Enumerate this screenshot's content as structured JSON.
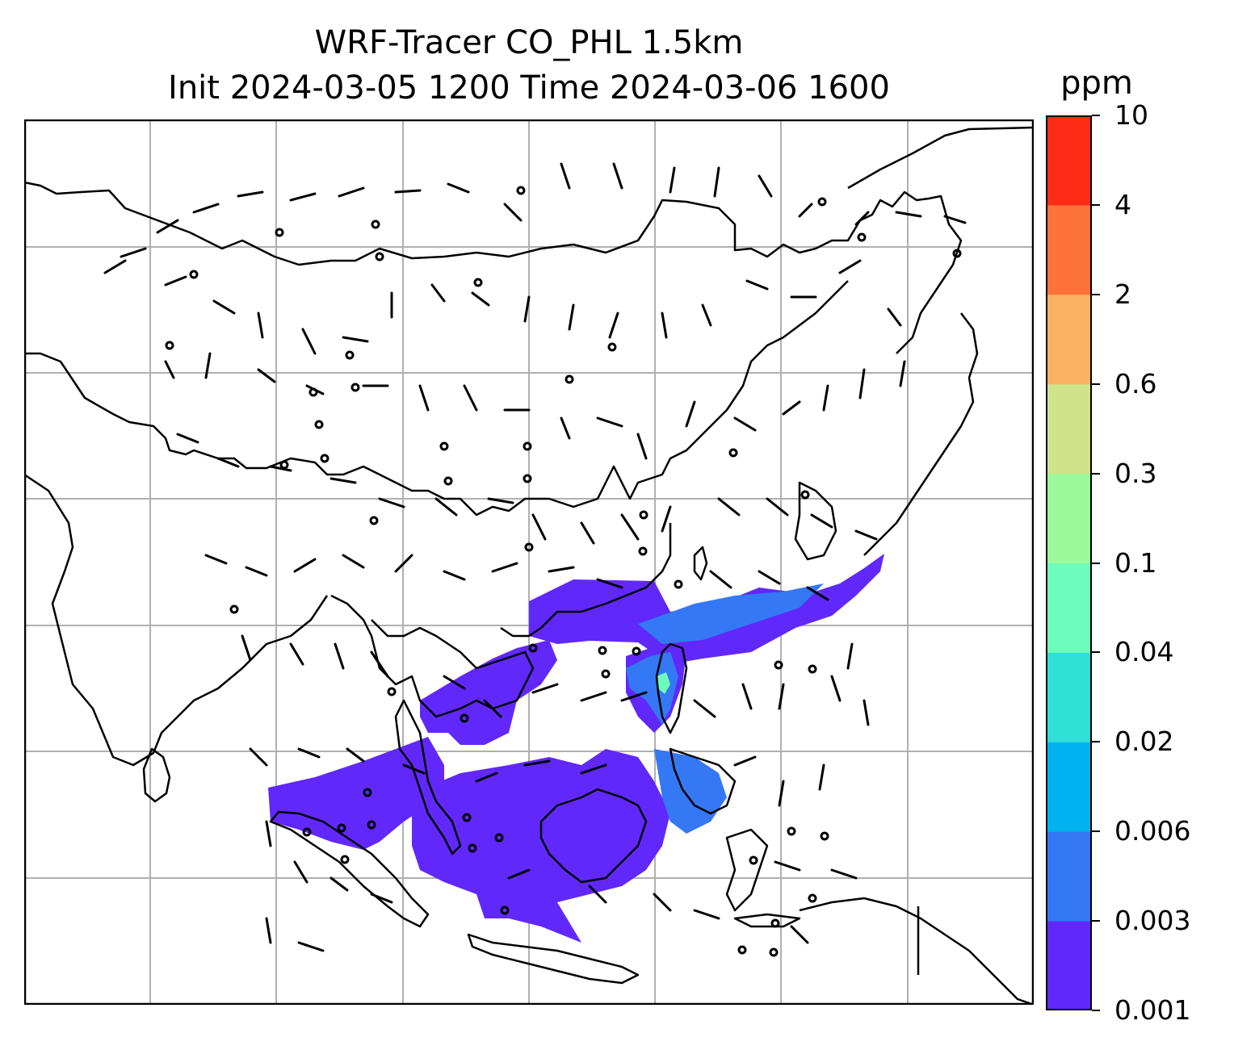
{
  "title": {
    "line1": "WRF-Tracer CO_PHL 1.5km",
    "line2": "Init 2024-03-05 1200 Time 2024-03-06 1600"
  },
  "colorbar": {
    "unit": "ppm",
    "levels": [
      "0.001",
      "0.003",
      "0.006",
      "0.02",
      "0.04",
      "0.1",
      "0.3",
      "0.6",
      "2",
      "4",
      "10"
    ],
    "colors": [
      "#6128fb",
      "#3478f5",
      "#00b2ef",
      "#2ee0d6",
      "#6dfcbb",
      "#9cfa9c",
      "#d1e38a",
      "#fbb363",
      "#fd7238",
      "#fc2b16"
    ]
  },
  "map": {
    "tracer_plume_color": "#6128fb",
    "tracer_plume_higher_color": "#3478f5",
    "tracer_plume_peak_color": "#6dfcbb",
    "coastline_color": "#000000",
    "wind_barb_color": "#000000",
    "gridline_color": "#b0b0b0",
    "gridlines": true,
    "features": [
      "coastlines",
      "wind-barbs",
      "tracer-concentration-contours"
    ]
  }
}
